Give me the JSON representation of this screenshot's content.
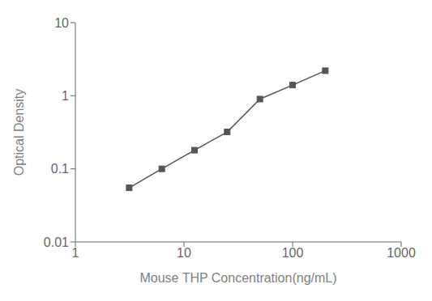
{
  "chart_data": {
    "type": "line",
    "x": [
      3.13,
      6.25,
      12.5,
      25,
      50,
      100,
      200
    ],
    "values": [
      0.055,
      0.1,
      0.18,
      0.32,
      0.9,
      1.4,
      2.2
    ],
    "xlabel": "Mouse THP Concentration(ng/mL)",
    "ylabel": "Optical Density",
    "xlim": [
      1,
      1000
    ],
    "ylim": [
      0.01,
      10
    ],
    "xticks": [
      1,
      10,
      100,
      1000
    ],
    "yticks": [
      0.01,
      0.1,
      1,
      10
    ],
    "log": true,
    "grid": false,
    "color": "#555555",
    "marker": "square"
  }
}
